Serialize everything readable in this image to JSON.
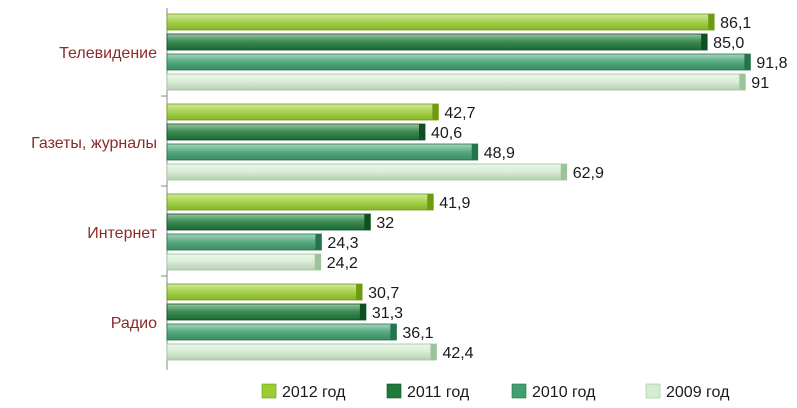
{
  "chart_data": {
    "type": "bar",
    "orientation": "horizontal",
    "categories": [
      "Телевидение",
      "Газеты, журналы",
      "Интернет",
      "Радио"
    ],
    "series": [
      {
        "name": "2012 год",
        "values": [
          86.1,
          42.7,
          41.9,
          30.7
        ],
        "labels": [
          "86,1",
          "42,7",
          "41,9",
          "30,7"
        ],
        "color": "#9acd32",
        "shade": "#6f9a10"
      },
      {
        "name": "2011 год",
        "values": [
          85.0,
          40.6,
          32,
          31.3
        ],
        "labels": [
          "85,0",
          "40,6",
          "32",
          "31,3"
        ],
        "color": "#1e7a3a",
        "shade": "#0f4f22"
      },
      {
        "name": "2010 год",
        "values": [
          91.8,
          48.9,
          24.3,
          36.1
        ],
        "labels": [
          "91,8",
          "48,9",
          "24,3",
          "36,1"
        ],
        "color": "#3fa06e",
        "shade": "#24734a"
      },
      {
        "name": "2009 год",
        "values": [
          91,
          62.9,
          24.2,
          42.4
        ],
        "labels": [
          "91",
          "62,9",
          "24,2",
          "42,4"
        ],
        "color": "#d4ecd0",
        "shade": "#9cc49a"
      }
    ],
    "xlim": [
      0,
      100
    ],
    "grid": false,
    "legend": "bottom"
  }
}
